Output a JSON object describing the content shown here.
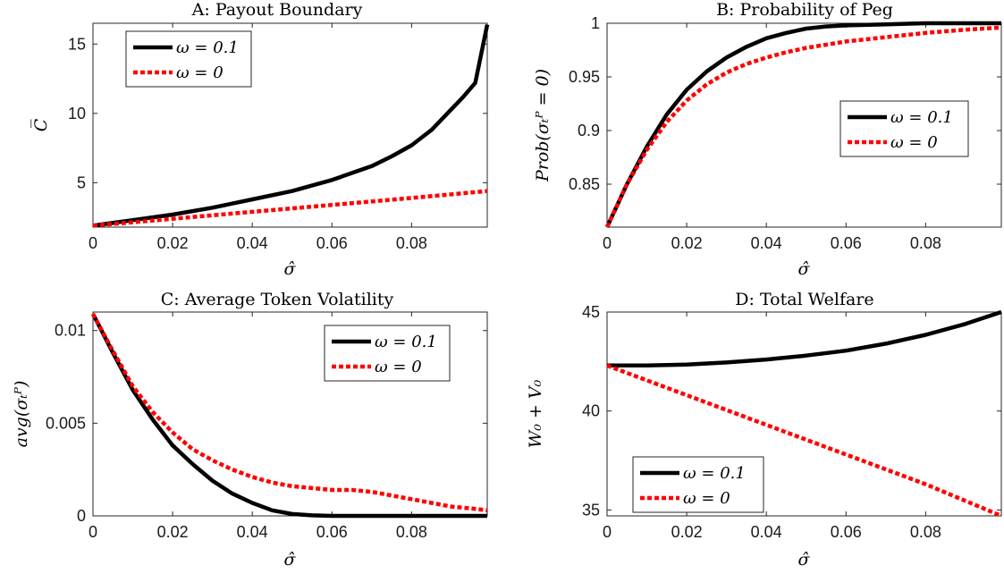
{
  "figure": {
    "panels": [
      {
        "title": "A: Payout Boundary",
        "xlabel": "σ̂",
        "ylabel": "C̅"
      },
      {
        "title": "B: Probability of Peg",
        "xlabel": "σ̂",
        "ylabel": "Prob(σₜᴾ = 0)"
      },
      {
        "title": "C: Average Token Volatility",
        "xlabel": "σ̂",
        "ylabel": "avg(σₜᴾ)"
      },
      {
        "title": "D: Total Welfare",
        "xlabel": "σ̂",
        "ylabel": "W₀ + V₀"
      }
    ]
  },
  "colors": {
    "series1": "#000000",
    "series2": "#ff0000"
  },
  "chart_data": [
    {
      "type": "line",
      "title": "A: Payout Boundary",
      "xlabel": "σ̂",
      "ylabel": "C̅",
      "xlim": [
        0,
        0.099
      ],
      "ylim": [
        1.8,
        16.5
      ],
      "xticks": [
        0,
        0.02,
        0.04,
        0.06,
        0.08
      ],
      "xtick_labels": [
        "0",
        "0.02",
        "0.04",
        "0.06",
        "0.08"
      ],
      "yticks": [
        5,
        10,
        15
      ],
      "ytick_labels": [
        "5",
        "10",
        "15"
      ],
      "legend_position": "top-left",
      "series": [
        {
          "name": "ω = 0.1",
          "color": "#000000",
          "style": "solid",
          "x": [
            0,
            0.01,
            0.02,
            0.03,
            0.04,
            0.05,
            0.06,
            0.07,
            0.075,
            0.08,
            0.085,
            0.09,
            0.093,
            0.096,
            0.099
          ],
          "y": [
            1.9,
            2.3,
            2.7,
            3.2,
            3.8,
            4.4,
            5.2,
            6.2,
            6.9,
            7.7,
            8.8,
            10.3,
            11.2,
            12.2,
            16.4
          ]
        },
        {
          "name": "ω = 0",
          "color": "#ff0000",
          "style": "dotted",
          "x": [
            0,
            0.02,
            0.04,
            0.06,
            0.08,
            0.099
          ],
          "y": [
            1.9,
            2.4,
            2.9,
            3.4,
            3.9,
            4.4
          ]
        }
      ]
    },
    {
      "type": "line",
      "title": "B: Probability of Peg",
      "xlabel": "σ̂",
      "ylabel": "Prob(σₜᴾ = 0)",
      "xlim": [
        0,
        0.099
      ],
      "ylim": [
        0.81,
        1.0
      ],
      "xticks": [
        0,
        0.02,
        0.04,
        0.06,
        0.08
      ],
      "xtick_labels": [
        "0",
        "0.02",
        "0.04",
        "0.06",
        "0.08"
      ],
      "yticks": [
        0.85,
        0.9,
        0.95,
        1
      ],
      "ytick_labels": [
        "0.85",
        "0.9",
        "0.95",
        "1"
      ],
      "legend_position": "right",
      "series": [
        {
          "name": "ω = 0.1",
          "color": "#000000",
          "style": "solid",
          "x": [
            0,
            0.005,
            0.01,
            0.015,
            0.02,
            0.025,
            0.03,
            0.035,
            0.04,
            0.045,
            0.05,
            0.055,
            0.06,
            0.07,
            0.08,
            0.09,
            0.099
          ],
          "y": [
            0.81,
            0.85,
            0.885,
            0.915,
            0.938,
            0.955,
            0.968,
            0.978,
            0.986,
            0.991,
            0.995,
            0.997,
            0.998,
            0.999,
            1.0,
            1.0,
            1.0
          ]
        },
        {
          "name": "ω = 0",
          "color": "#ff0000",
          "style": "dotted",
          "x": [
            0,
            0.005,
            0.01,
            0.015,
            0.02,
            0.025,
            0.03,
            0.035,
            0.04,
            0.045,
            0.05,
            0.055,
            0.06,
            0.07,
            0.08,
            0.09,
            0.099
          ],
          "y": [
            0.81,
            0.85,
            0.882,
            0.908,
            0.928,
            0.943,
            0.954,
            0.962,
            0.968,
            0.973,
            0.977,
            0.98,
            0.983,
            0.987,
            0.991,
            0.994,
            0.996
          ]
        }
      ]
    },
    {
      "type": "line",
      "title": "C: Average Token Volatility",
      "xlabel": "σ̂",
      "ylabel": "avg(σₜᴾ)",
      "xlim": [
        0,
        0.099
      ],
      "ylim": [
        0,
        0.011
      ],
      "xticks": [
        0,
        0.02,
        0.04,
        0.06,
        0.08
      ],
      "xtick_labels": [
        "0",
        "0.02",
        "0.04",
        "0.06",
        "0.08"
      ],
      "yticks": [
        0,
        0.005,
        0.01
      ],
      "ytick_labels": [
        "0",
        "0.005",
        "0.01"
      ],
      "legend_position": "top-right",
      "series": [
        {
          "name": "ω = 0.1",
          "color": "#000000",
          "style": "solid",
          "x": [
            0,
            0.005,
            0.01,
            0.015,
            0.02,
            0.025,
            0.03,
            0.035,
            0.04,
            0.045,
            0.05,
            0.055,
            0.06,
            0.07,
            0.08,
            0.09,
            0.099
          ],
          "y": [
            0.0109,
            0.0088,
            0.0068,
            0.0052,
            0.0038,
            0.0028,
            0.0019,
            0.0012,
            0.0007,
            0.0003,
            0.0001,
            3e-05,
            0.0,
            0.0,
            0.0,
            0.0,
            0.0
          ]
        },
        {
          "name": "ω = 0",
          "color": "#ff0000",
          "style": "dotted",
          "x": [
            0,
            0.005,
            0.01,
            0.015,
            0.02,
            0.025,
            0.03,
            0.035,
            0.04,
            0.045,
            0.05,
            0.055,
            0.06,
            0.065,
            0.07,
            0.075,
            0.08,
            0.085,
            0.09,
            0.095,
            0.099
          ],
          "y": [
            0.0109,
            0.0089,
            0.007,
            0.0056,
            0.0045,
            0.0036,
            0.003,
            0.0025,
            0.0021,
            0.0018,
            0.0016,
            0.0015,
            0.0014,
            0.0014,
            0.0013,
            0.0011,
            0.0009,
            0.0007,
            0.0005,
            0.0004,
            0.0003
          ]
        }
      ]
    },
    {
      "type": "line",
      "title": "D: Total Welfare",
      "xlabel": "σ̂",
      "ylabel": "W₀ + V₀",
      "xlim": [
        0,
        0.099
      ],
      "ylim": [
        34.7,
        45
      ],
      "xticks": [
        0,
        0.02,
        0.04,
        0.06,
        0.08
      ],
      "xtick_labels": [
        "0",
        "0.02",
        "0.04",
        "0.06",
        "0.08"
      ],
      "yticks": [
        35,
        40,
        45
      ],
      "ytick_labels": [
        "35",
        "40",
        "45"
      ],
      "legend_position": "bottom-left",
      "series": [
        {
          "name": "ω = 0.1",
          "color": "#000000",
          "style": "solid",
          "x": [
            0,
            0.01,
            0.02,
            0.03,
            0.04,
            0.05,
            0.06,
            0.07,
            0.08,
            0.09,
            0.099
          ],
          "y": [
            42.3,
            42.3,
            42.35,
            42.45,
            42.6,
            42.8,
            43.05,
            43.4,
            43.85,
            44.4,
            45.0
          ]
        },
        {
          "name": "ω = 0",
          "color": "#ff0000",
          "style": "dotted",
          "x": [
            0,
            0.02,
            0.04,
            0.06,
            0.08,
            0.099
          ],
          "y": [
            42.3,
            40.8,
            39.3,
            37.8,
            36.3,
            34.7
          ]
        }
      ]
    }
  ]
}
